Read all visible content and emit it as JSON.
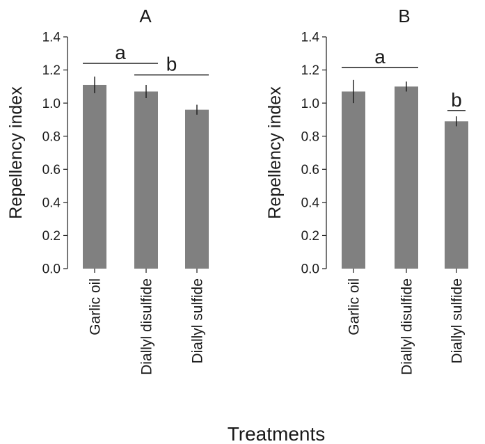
{
  "chart_data": [
    {
      "type": "bar",
      "title": "A",
      "ylabel": "Repellency index",
      "ylim": [
        0,
        1.4
      ],
      "yticks": [
        "0.0",
        "0.2",
        "0.4",
        "0.6",
        "0.8",
        "1.0",
        "1.2",
        "1.4"
      ],
      "categories": [
        "Garlic oil",
        "Diallyl disulfide",
        "Diallyl sulfide"
      ],
      "values": [
        1.11,
        1.07,
        0.96
      ],
      "errors": [
        0.05,
        0.04,
        0.03
      ],
      "bar_color": "#808080",
      "significance": [
        {
          "letter": "a",
          "from": 0,
          "to": 1,
          "level": 1.24
        },
        {
          "letter": "b",
          "from": 1,
          "to": 2,
          "level": 1.17
        }
      ]
    },
    {
      "type": "bar",
      "title": "B",
      "ylabel": "Repellency index",
      "ylim": [
        0,
        1.4
      ],
      "yticks": [
        "0.0",
        "0.2",
        "0.4",
        "0.6",
        "0.8",
        "1.0",
        "1.2",
        "1.4"
      ],
      "categories": [
        "Garlic oil",
        "Diallyl disulfide",
        "Diallyl sulfide"
      ],
      "values": [
        1.07,
        1.1,
        0.89
      ],
      "errors": [
        0.07,
        0.03,
        0.03
      ],
      "bar_color": "#808080",
      "significance": [
        {
          "letter": "a",
          "from": 0,
          "to": 1,
          "level": 1.215
        },
        {
          "letter": "b",
          "from": 2,
          "to": 2,
          "level": 0.955
        }
      ]
    }
  ],
  "figure": {
    "xlabel": "Treatments"
  }
}
